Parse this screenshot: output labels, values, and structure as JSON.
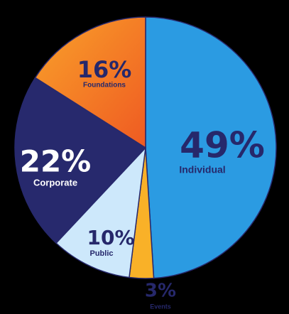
{
  "chart_data": {
    "type": "pie",
    "categories": [
      "Individual",
      "Events",
      "Public",
      "Corporate",
      "Foundations"
    ],
    "values": [
      49,
      3,
      10,
      22,
      16
    ],
    "value_labels": [
      "49%",
      "3%",
      "10%",
      "22%",
      "16%"
    ],
    "colors": [
      "#2b9be2",
      "#f9b128",
      "#cde8fb",
      "#27296d",
      "#f47a21"
    ]
  }
}
